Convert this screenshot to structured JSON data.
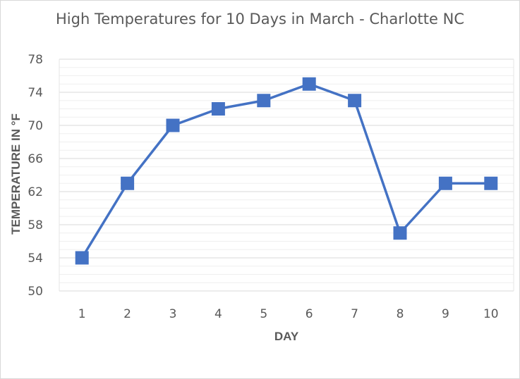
{
  "chart_data": {
    "type": "line",
    "title": "High Temperatures for 10 Days in March - Charlotte NC",
    "xlabel": "DAY",
    "ylabel": "TEMPERATURE IN °F",
    "categories": [
      "1",
      "2",
      "3",
      "4",
      "5",
      "6",
      "7",
      "8",
      "9",
      "10"
    ],
    "series": [
      {
        "values": [
          54,
          63,
          70,
          72,
          73,
          75,
          73,
          57,
          63,
          63
        ]
      }
    ],
    "ylim": [
      50,
      78
    ],
    "yticks": [
      "50",
      "54",
      "58",
      "62",
      "66",
      "70",
      "74",
      "78"
    ],
    "grid": true,
    "legend": "none",
    "line_color": "#4472C4",
    "marker": "square"
  }
}
